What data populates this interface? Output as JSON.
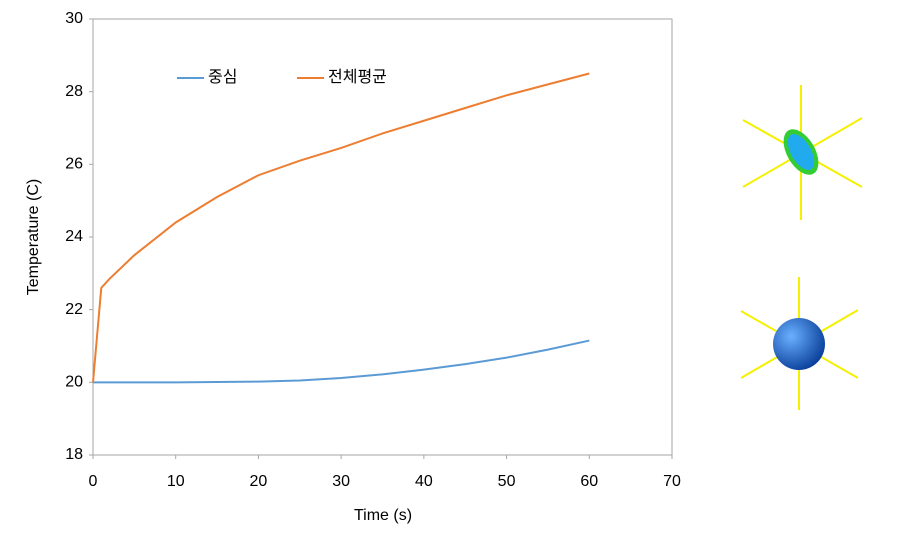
{
  "chart_data": {
    "type": "line",
    "x_label": "Time (s)",
    "y_label": "Temperature (C)",
    "x": [
      0,
      1,
      2,
      5,
      10,
      15,
      20,
      25,
      30,
      35,
      40,
      45,
      50,
      55,
      60
    ],
    "series": [
      {
        "name": "중심",
        "color": "#5b9bd5",
        "values": [
          20,
          20,
          20,
          20,
          20,
          20.01,
          20.02,
          20.05,
          20.12,
          20.22,
          20.35,
          20.5,
          20.68,
          20.9,
          21.15
        ]
      },
      {
        "name": "전체평균",
        "color": "#ed7d31",
        "values": [
          20,
          22.6,
          22.85,
          23.5,
          24.4,
          25.1,
          25.7,
          26.1,
          26.45,
          26.85,
          27.2,
          27.55,
          27.9,
          28.2,
          28.5
        ]
      }
    ],
    "xlim": [
      0,
      70
    ],
    "xticks": [
      0,
      10,
      20,
      30,
      40,
      50,
      60,
      70
    ],
    "ylim": [
      18,
      30
    ],
    "yticks": [
      18,
      20,
      22,
      24,
      26,
      28,
      30
    ],
    "grid": false,
    "legend": "top-left"
  }
}
